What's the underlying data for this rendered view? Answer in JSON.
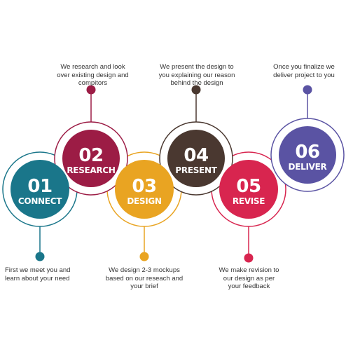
{
  "steps": [
    {
      "number": "01",
      "title": "CONNECT",
      "color": "#1a768a",
      "caption": "First we meet you and\nlearn about your need"
    },
    {
      "number": "02",
      "title": "RESEARCH",
      "color": "#9c1c45",
      "caption": "We research and look\nover existing design and\ncompitors"
    },
    {
      "number": "03",
      "title": "DESIGN",
      "color": "#e9a422",
      "caption": "We design 2-3 mockups\nbased on our reseach and\nyour brief"
    },
    {
      "number": "04",
      "title": "PRESENT",
      "color": "#4a3830",
      "caption": "We present the design to\nyou explaining our reason\nbehind the design"
    },
    {
      "number": "05",
      "title": "REVISE",
      "color": "#d8254f",
      "caption": "We make revision to\nour design as per\nyour feedback"
    },
    {
      "number": "06",
      "title": "DELIVER",
      "color": "#5a53a3",
      "caption": "Once you finalize we\ndeliver project to you"
    }
  ]
}
